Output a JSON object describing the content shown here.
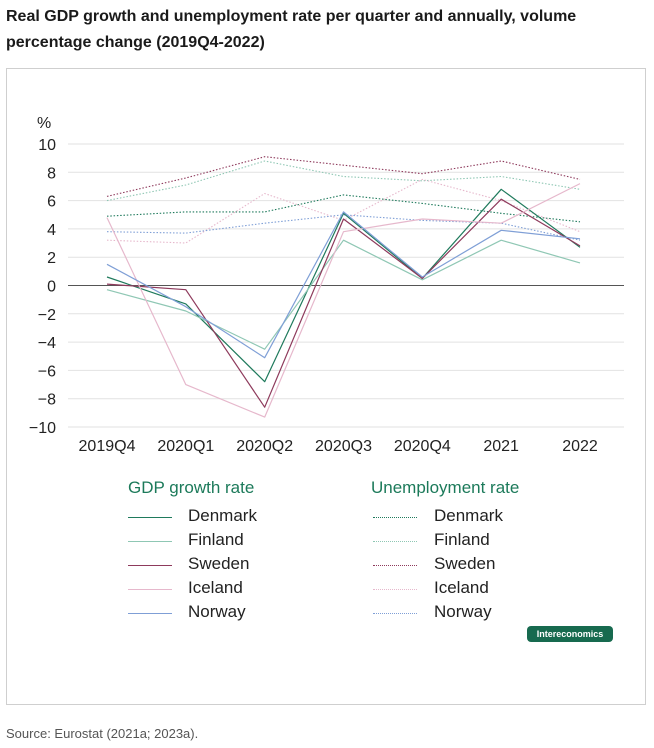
{
  "title": "Real GDP growth and unemployment rate per quarter and annually, volume percentage change (2019Q4-2022)",
  "source": "Source: Eurostat (2021a; 2023a).",
  "brand": "Intereconomics",
  "chart_data": {
    "type": "line",
    "title": "Real GDP growth and unemployment rate per quarter and annually, volume percentage change (2019Q4-2022)",
    "ylabel": "%",
    "xlabel": "",
    "ylim": [
      -10,
      10
    ],
    "yticks": [
      10,
      8,
      6,
      4,
      2,
      0,
      -2,
      -4,
      -6,
      -8,
      -10
    ],
    "ytick_labels": [
      "10",
      "8",
      "6",
      "4",
      "2",
      "0",
      "−2",
      "−4",
      "−6",
      "−8",
      "−10"
    ],
    "categories": [
      "2019Q4",
      "2020Q1",
      "2020Q2",
      "2020Q3",
      "2020Q4",
      "2021",
      "2022"
    ],
    "grid": true,
    "legend_groups": [
      {
        "title": "GDP growth rate",
        "style": "solid"
      },
      {
        "title": "Unemployment rate",
        "style": "dotted"
      }
    ],
    "series": [
      {
        "name": "Denmark",
        "group": "GDP growth rate",
        "style": "solid",
        "color": "#1f7a5c",
        "values": [
          0.6,
          -1.3,
          -6.8,
          5.1,
          0.5,
          6.8,
          2.7
        ]
      },
      {
        "name": "Finland",
        "group": "GDP growth rate",
        "style": "solid",
        "color": "#8fc7b4",
        "values": [
          -0.3,
          -1.8,
          -4.5,
          3.2,
          0.4,
          3.2,
          1.6
        ]
      },
      {
        "name": "Sweden",
        "group": "GDP growth rate",
        "style": "solid",
        "color": "#8e3a5c",
        "values": [
          0.1,
          -0.3,
          -8.6,
          4.7,
          0.5,
          6.1,
          2.8
        ]
      },
      {
        "name": "Iceland",
        "group": "GDP growth rate",
        "style": "solid",
        "color": "#e6b8cc",
        "values": [
          4.8,
          -7.0,
          -9.3,
          3.8,
          4.7,
          4.4,
          7.2
        ]
      },
      {
        "name": "Norway",
        "group": "GDP growth rate",
        "style": "solid",
        "color": "#7f9fd6",
        "values": [
          1.5,
          -1.5,
          -5.1,
          5.2,
          0.6,
          3.9,
          3.3
        ]
      },
      {
        "name": "Denmark",
        "group": "Unemployment rate",
        "style": "dotted",
        "color": "#1f7a5c",
        "values": [
          4.9,
          5.2,
          5.2,
          6.4,
          5.8,
          5.1,
          4.5
        ]
      },
      {
        "name": "Finland",
        "group": "Unemployment rate",
        "style": "dotted",
        "color": "#8fc7b4",
        "values": [
          6.0,
          7.1,
          8.8,
          7.7,
          7.4,
          7.7,
          6.8
        ]
      },
      {
        "name": "Sweden",
        "group": "Unemployment rate",
        "style": "dotted",
        "color": "#8e3a5c",
        "values": [
          6.3,
          7.6,
          9.1,
          8.5,
          7.9,
          8.8,
          7.5
        ]
      },
      {
        "name": "Iceland",
        "group": "Unemployment rate",
        "style": "dotted",
        "color": "#e6b8cc",
        "values": [
          3.2,
          3.0,
          6.5,
          4.6,
          7.5,
          6.0,
          3.8
        ]
      },
      {
        "name": "Norway",
        "group": "Unemployment rate",
        "style": "dotted",
        "color": "#7f9fd6",
        "values": [
          3.8,
          3.7,
          4.4,
          5.0,
          4.6,
          4.4,
          3.2
        ]
      }
    ]
  }
}
